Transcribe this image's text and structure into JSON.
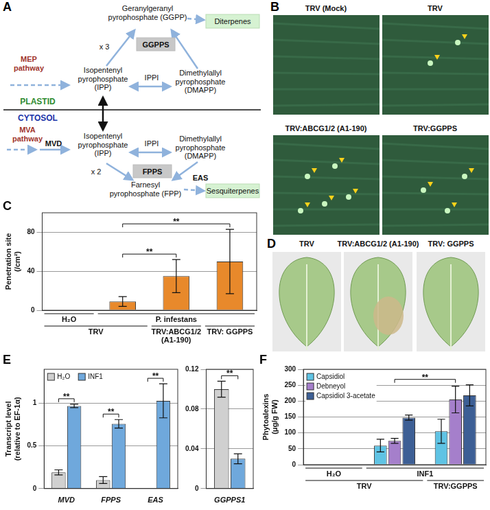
{
  "panel_labels": [
    "A",
    "B",
    "C",
    "D",
    "E",
    "F"
  ],
  "diagram": {
    "nodes": {
      "ggpp": [
        "Geranylgeranyl",
        "pyrophosphate (GGPP)"
      ],
      "diterpenes": [
        "Diterpenes"
      ],
      "x3": [
        "x 3"
      ],
      "ggpps": [
        "GGPPS"
      ],
      "mep": [
        "MEP",
        "pathway"
      ],
      "ipp_p": [
        "Isopentenyl",
        "pyrophosphate",
        "(IPP)"
      ],
      "ippi_p": [
        "IPPI"
      ],
      "dmapp_p": [
        "Dimethylallyl",
        "pyrophosphate",
        "(DMAPP)"
      ],
      "plastid": [
        "PLASTID"
      ],
      "cytosol": [
        "CYTOSOL"
      ],
      "mva": [
        "MVA",
        "pathway"
      ],
      "mvd": [
        "MVD"
      ],
      "ipp_c": [
        "Isopentenyl",
        "pyrophosphate",
        "(IPP)"
      ],
      "ippi_c": [
        "IPPI"
      ],
      "dmapp_c": [
        "Dimethylallyl",
        "pyrophosphate",
        "(DMAPP)"
      ],
      "x2": [
        "x 2"
      ],
      "fpps": [
        "FPPS"
      ],
      "fpp": [
        "Farnesyl",
        "pyrophosphate (FPP)"
      ],
      "eas": [
        "EAS"
      ],
      "sesquiterpenes": [
        "Sesquiterpenes"
      ]
    }
  },
  "images": {
    "B": [
      "TRV (Mock)",
      "TRV",
      "TRV:ABCG1/2 (A1-190)",
      "TRV:GGPPS"
    ],
    "D": [
      "TRV",
      "TRV:ABCG1/2 (A1-190)",
      "TRV: GGPPS"
    ]
  },
  "chart_data": [
    {
      "type": "bar",
      "ylabel": [
        "Penetration site",
        "(/cm²)"
      ],
      "categories": [
        null,
        null,
        null,
        null
      ],
      "values": [
        0,
        9,
        35,
        50
      ],
      "errors": [
        0,
        5,
        17,
        33
      ],
      "color": "#e8892b",
      "ylim": [
        0,
        100
      ],
      "yticks": [
        0,
        40,
        80
      ],
      "grid": true,
      "x_groups": [
        [
          {
            "label": "H₂O",
            "from": 0,
            "to": 0
          },
          {
            "label": "P. infestans",
            "from": 1,
            "to": 3
          }
        ],
        [
          {
            "label": "TRV",
            "from": 0,
            "to": 1
          },
          {
            "label": "TRV:ABCG1/2 (A1-190)",
            "from": 2,
            "to": 2
          },
          {
            "label": "TRV: GGPPS",
            "from": 3,
            "to": 3
          }
        ]
      ],
      "significance": [
        {
          "from": 1,
          "to": 2,
          "label": "**"
        },
        {
          "from": 1,
          "to": 3,
          "label": "**"
        }
      ]
    },
    {
      "type": "bar",
      "ylabel": [
        "Transcript level",
        "(relative to EF-1α)"
      ],
      "categories": [
        "MVD",
        "FPPS",
        "EAS"
      ],
      "series": [
        {
          "name": "H₂O",
          "color": "#d0d0d0",
          "values": [
            0.19,
            0.1,
            0
          ],
          "errors": [
            0.03,
            0.04,
            0
          ]
        },
        {
          "name": "INF1",
          "color": "#6fa8dc",
          "values": [
            0.97,
            0.76,
            1.03
          ],
          "errors": [
            0.02,
            0.05,
            0.2
          ]
        }
      ],
      "ylim": [
        0,
        1.4
      ],
      "yticks": [
        0,
        0.5,
        1
      ],
      "grid": true,
      "legend": "upper left",
      "significance": [
        {
          "category": 0,
          "label": "**"
        },
        {
          "category": 1,
          "label": "**"
        },
        {
          "category": 2,
          "label": "**"
        }
      ]
    },
    {
      "type": "bar",
      "categories": [
        "GGPPS1"
      ],
      "series": [
        {
          "color": "#d0d0d0",
          "values": [
            0.1
          ],
          "errors": [
            0.008
          ]
        },
        {
          "color": "#6fa8dc",
          "values": [
            0.03
          ],
          "errors": [
            0.005
          ]
        }
      ],
      "ylim": [
        0,
        0.12
      ],
      "yticks": [
        0,
        0.04,
        0.08,
        0.12
      ],
      "grid": true,
      "significance": [
        {
          "category": 0,
          "label": "**"
        }
      ]
    },
    {
      "type": "bar",
      "ylabel": [
        "Phytoalexins",
        "(μg/g FW)"
      ],
      "categories": [
        null,
        null,
        null
      ],
      "series": [
        {
          "name": "Capsidiol",
          "color": "#5fc3e4",
          "values": [
            0,
            60,
            105
          ],
          "errors": [
            0,
            20,
            38
          ]
        },
        {
          "name": "Debneyol",
          "color": "#a57fcb",
          "values": [
            0,
            75,
            205
          ],
          "errors": [
            0,
            8,
            42
          ]
        },
        {
          "name": "Capsidiol 3-acetate",
          "color": "#3d5f95",
          "values": [
            0,
            148,
            218
          ],
          "errors": [
            0,
            8,
            33
          ]
        }
      ],
      "ylim": [
        0,
        300
      ],
      "yticks": [
        0,
        50,
        100,
        150,
        200,
        250,
        300
      ],
      "grid": true,
      "legend": "upper left",
      "x_groups": [
        [
          {
            "label": "H₂O",
            "from": 0,
            "to": 0
          },
          {
            "label": "INF1",
            "from": 1,
            "to": 2
          }
        ],
        [
          {
            "label": "TRV",
            "from": 0,
            "to": 1
          },
          {
            "label": "TRV:GGPPS",
            "from": 2,
            "to": 2
          }
        ]
      ],
      "significance": [
        {
          "from": 1,
          "to": 2,
          "label": "**"
        }
      ]
    }
  ]
}
